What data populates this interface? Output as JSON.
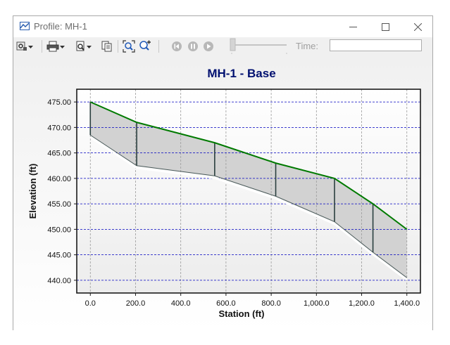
{
  "window": {
    "title": "Profile:  MH-1"
  },
  "toolbar": {
    "items": [
      "settings-icon",
      "print-icon",
      "print-preview-icon",
      "copy-icon",
      "zoom-extents-icon",
      "zoom-in-icon",
      "first-frame-icon",
      "pause-icon",
      "play-icon"
    ],
    "time_label": "Time:",
    "time_value": ""
  },
  "colors": {
    "ground": "#007a00",
    "pipe": "#2a3f3f",
    "grid_h": "#0000c0",
    "title": "#001070",
    "fill": "#d2d2d2"
  },
  "chart_data": {
    "type": "area",
    "title": "MH-1 - Base",
    "xlabel": "Station (ft)",
    "ylabel": "Elevation (ft)",
    "xlim": [
      -60,
      1460
    ],
    "ylim": [
      437.5,
      477.5
    ],
    "xticks": [
      "0.0",
      "200.0",
      "400.0",
      "600.0",
      "800.0",
      "1,000.0",
      "1,200.0",
      "1,400.0"
    ],
    "yticks": [
      "440.00",
      "445.00",
      "450.00",
      "455.00",
      "460.00",
      "465.00",
      "470.00",
      "475.00"
    ],
    "grid": true,
    "series": [
      {
        "name": "",
        "x": [
          0,
          205,
          550,
          820,
          1080,
          1250,
          1400
        ],
        "values": [
          475.0,
          471.0,
          467.0,
          463.0,
          460.0,
          455.0,
          450.0
        ]
      },
      {
        "name": "",
        "x": [
          0,
          205,
          550,
          820,
          1080,
          1250,
          1400
        ],
        "values": [
          468.5,
          462.5,
          460.5,
          456.5,
          451.5,
          445.5,
          440.5
        ]
      }
    ],
    "node_stations": [
      0,
      205,
      550,
      820,
      1080,
      1250
    ]
  }
}
